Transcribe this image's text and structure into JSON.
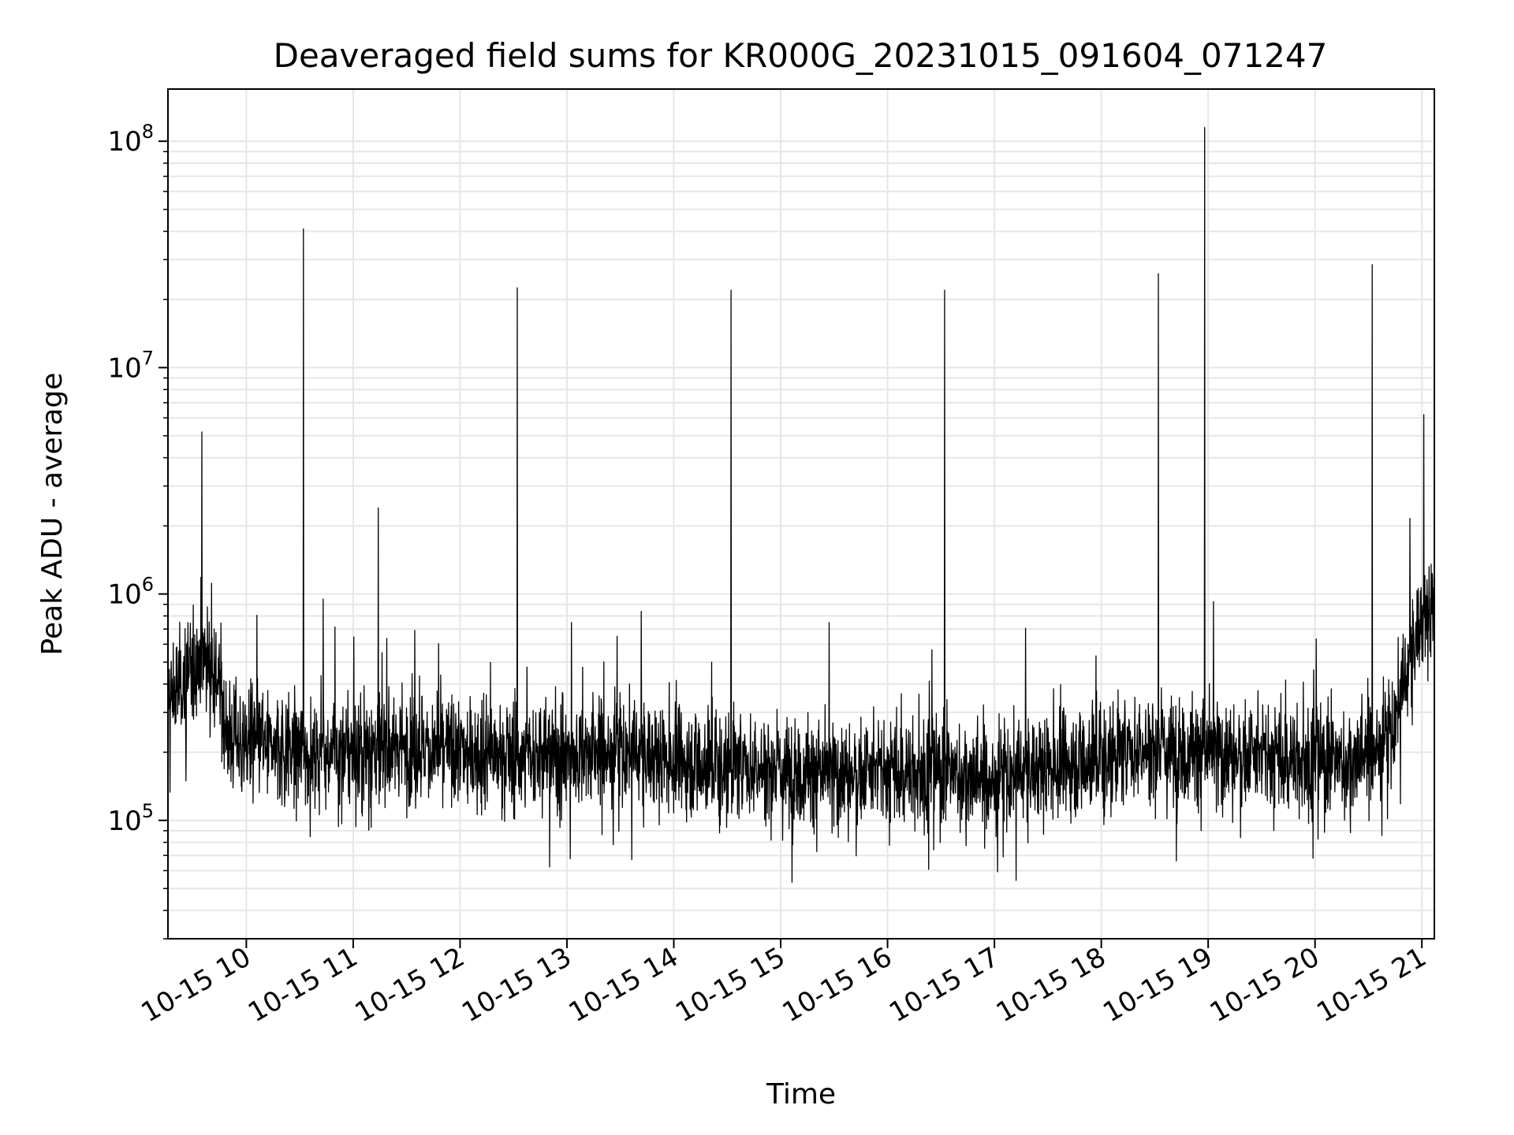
{
  "chart_data": {
    "type": "line",
    "title": "Deaveraged field sums for KR000G_20231015_091604_071247",
    "xlabel": "Time",
    "ylabel": "Peak ADU - average",
    "yscale": "log",
    "grid": true,
    "line_color": "#000000",
    "grid_color": "#e6e6e6",
    "xlim": [
      "2023-10-15 09:16",
      "2023-10-15 21:07"
    ],
    "ylim": [
      30000,
      170000000
    ],
    "x_ticks": [
      {
        "value": "2023-10-15 10:00",
        "label": "10-15 10"
      },
      {
        "value": "2023-10-15 11:00",
        "label": "10-15 11"
      },
      {
        "value": "2023-10-15 12:00",
        "label": "10-15 12"
      },
      {
        "value": "2023-10-15 13:00",
        "label": "10-15 13"
      },
      {
        "value": "2023-10-15 14:00",
        "label": "10-15 14"
      },
      {
        "value": "2023-10-15 15:00",
        "label": "10-15 15"
      },
      {
        "value": "2023-10-15 16:00",
        "label": "10-15 16"
      },
      {
        "value": "2023-10-15 17:00",
        "label": "10-15 17"
      },
      {
        "value": "2023-10-15 18:00",
        "label": "10-15 18"
      },
      {
        "value": "2023-10-15 19:00",
        "label": "10-15 19"
      },
      {
        "value": "2023-10-15 20:00",
        "label": "10-15 20"
      },
      {
        "value": "2023-10-15 21:00",
        "label": "10-15 21"
      }
    ],
    "y_ticks": [
      {
        "value": 100000,
        "base": "10",
        "exp": "5"
      },
      {
        "value": 1000000,
        "base": "10",
        "exp": "6"
      },
      {
        "value": 10000000,
        "base": "10",
        "exp": "7"
      },
      {
        "value": 100000000,
        "base": "10",
        "exp": "8"
      }
    ],
    "spikes": [
      {
        "x": "2023-10-15 09:35",
        "y": 5200000
      },
      {
        "x": "2023-10-15 10:32",
        "y": 41000000
      },
      {
        "x": "2023-10-15 10:43",
        "y": 950000
      },
      {
        "x": "2023-10-15 11:14",
        "y": 2400000
      },
      {
        "x": "2023-10-15 12:32",
        "y": 22500000
      },
      {
        "x": "2023-10-15 13:28",
        "y": 650000
      },
      {
        "x": "2023-10-15 14:32",
        "y": 22000000
      },
      {
        "x": "2023-10-15 16:32",
        "y": 22000000
      },
      {
        "x": "2023-10-15 18:32",
        "y": 26000000
      },
      {
        "x": "2023-10-15 18:58",
        "y": 115000000
      },
      {
        "x": "2023-10-15 20:32",
        "y": 28500000
      },
      {
        "x": "2023-10-15 21:01",
        "y": 6200000
      }
    ],
    "baseline_profile": [
      {
        "x": "2023-10-15 09:16",
        "y": 330000
      },
      {
        "x": "2023-10-15 09:25",
        "y": 420000
      },
      {
        "x": "2023-10-15 09:35",
        "y": 560000
      },
      {
        "x": "2023-10-15 09:42",
        "y": 500000
      },
      {
        "x": "2023-10-15 09:50",
        "y": 230000
      },
      {
        "x": "2023-10-15 10:30",
        "y": 200000
      },
      {
        "x": "2023-10-15 11:30",
        "y": 210000
      },
      {
        "x": "2023-10-15 12:30",
        "y": 190000
      },
      {
        "x": "2023-10-15 13:30",
        "y": 200000
      },
      {
        "x": "2023-10-15 14:30",
        "y": 175000
      },
      {
        "x": "2023-10-15 15:30",
        "y": 160000
      },
      {
        "x": "2023-10-15 16:30",
        "y": 165000
      },
      {
        "x": "2023-10-15 17:00",
        "y": 150000
      },
      {
        "x": "2023-10-15 17:30",
        "y": 175000
      },
      {
        "x": "2023-10-15 18:30",
        "y": 210000
      },
      {
        "x": "2023-10-15 19:30",
        "y": 190000
      },
      {
        "x": "2023-10-15 20:20",
        "y": 180000
      },
      {
        "x": "2023-10-15 20:42",
        "y": 230000
      },
      {
        "x": "2023-10-15 20:50",
        "y": 400000
      },
      {
        "x": "2023-10-15 21:00",
        "y": 800000
      },
      {
        "x": "2023-10-15 21:07",
        "y": 850000
      }
    ]
  }
}
